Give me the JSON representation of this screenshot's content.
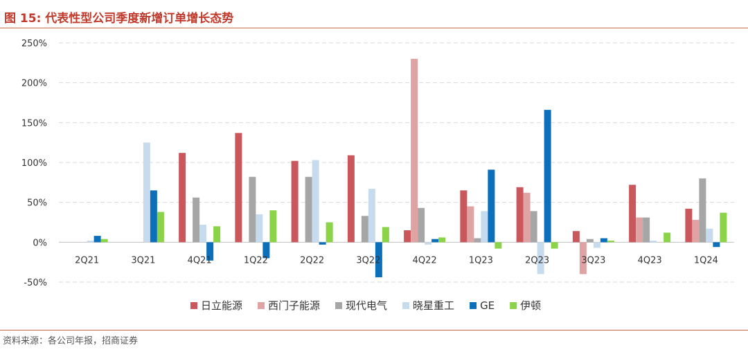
{
  "figure": {
    "title": "图 15:  代表性型公司季度新增订单增长态势",
    "source": "资料来源：各公司年报，招商证券"
  },
  "chart_data": {
    "type": "bar",
    "categories": [
      "2Q21",
      "3Q21",
      "4Q21",
      "1Q22",
      "2Q22",
      "3Q22",
      "4Q22",
      "1Q23",
      "2Q23",
      "3Q23",
      "4Q23",
      "1Q24"
    ],
    "ylim": [
      -50,
      250
    ],
    "yticks": [
      -50,
      0,
      50,
      100,
      150,
      200,
      250
    ],
    "ytick_labels": [
      "-50%",
      "0%",
      "50%",
      "100%",
      "150%",
      "200%",
      "250%"
    ],
    "grid": true,
    "legend_position": "bottom",
    "series": [
      {
        "name": "日立能源",
        "color": "#c9575c",
        "values": [
          null,
          null,
          112,
          137,
          102,
          109,
          15,
          65,
          69,
          14,
          72,
          42
        ]
      },
      {
        "name": "西门子能源",
        "color": "#e0a3a3",
        "values": [
          null,
          null,
          null,
          null,
          null,
          null,
          230,
          45,
          62,
          -40,
          31,
          28
        ]
      },
      {
        "name": "现代电气",
        "color": "#a6a6a6",
        "values": [
          null,
          null,
          56,
          82,
          82,
          33,
          43,
          5,
          39,
          4,
          31,
          80
        ]
      },
      {
        "name": "晓星重工",
        "color": "#c6dcee",
        "values": [
          2,
          125,
          22,
          35,
          103,
          67,
          -3,
          39,
          -40,
          -7,
          2,
          17
        ]
      },
      {
        "name": "GE",
        "color": "#0b6fba",
        "values": [
          8,
          65,
          -23,
          -20,
          -3,
          -44,
          4,
          91,
          166,
          5,
          null,
          -6
        ]
      },
      {
        "name": "伊顿",
        "color": "#8bd348",
        "values": [
          4,
          38,
          20,
          40,
          25,
          19,
          6,
          -8,
          -8,
          2,
          12,
          37
        ]
      }
    ]
  }
}
